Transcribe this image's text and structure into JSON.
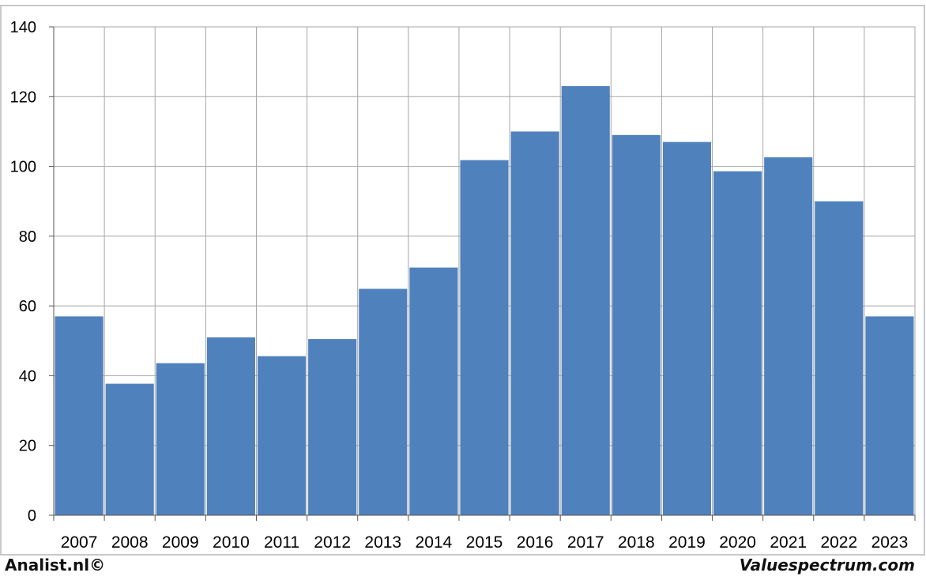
{
  "footer": {
    "left_text": "Analist.nl©",
    "right_text": "Valuespectrum.com"
  },
  "colors": {
    "bar": "#4f81bd",
    "grid": "#a6a6a6",
    "frame": "#c8c8c8"
  },
  "chart_data": {
    "type": "bar",
    "title": "",
    "xlabel": "",
    "ylabel": "",
    "grid": true,
    "legend": "none",
    "ylim": [
      0,
      140
    ],
    "yticks": [
      0,
      20,
      40,
      60,
      80,
      100,
      120,
      140
    ],
    "categories": [
      "2007",
      "2008",
      "2009",
      "2010",
      "2011",
      "2012",
      "2013",
      "2014",
      "2015",
      "2016",
      "2017",
      "2018",
      "2019",
      "2020",
      "2021",
      "2022",
      "2023"
    ],
    "values": [
      57,
      37.7,
      43.6,
      51,
      45.6,
      50.5,
      64.9,
      71,
      101.8,
      110,
      123,
      109,
      107,
      98.6,
      102.6,
      90,
      57
    ]
  }
}
